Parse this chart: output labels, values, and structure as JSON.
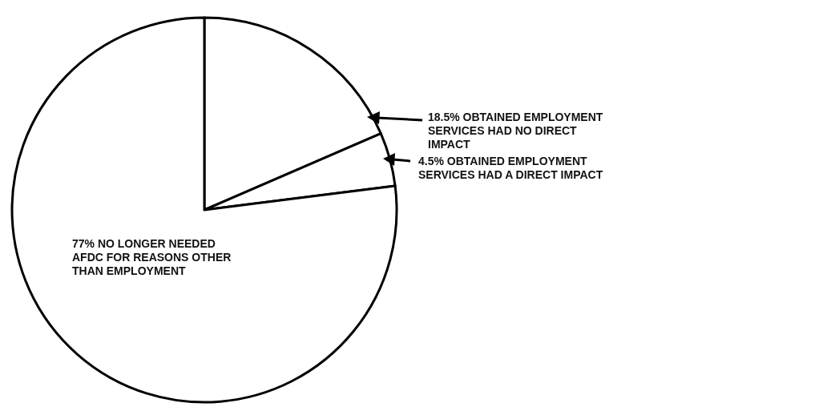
{
  "chart_data": {
    "type": "pie",
    "categories": [
      "18.5% OBTAINED EMPLOYMENT\nSERVICES HAD NO DIRECT\nIMPACT",
      "4.5% OBTAINED EMPLOYMENT\nSERVICES HAD A DIRECT IMPACT",
      "77% NO LONGER NEEDED\nAFDC FOR REASONS OTHER\nTHAN EMPLOYMENT"
    ],
    "values": [
      18.5,
      4.5,
      77
    ],
    "colors": [
      "#ffffff",
      "#ffffff",
      "#ffffff"
    ]
  }
}
